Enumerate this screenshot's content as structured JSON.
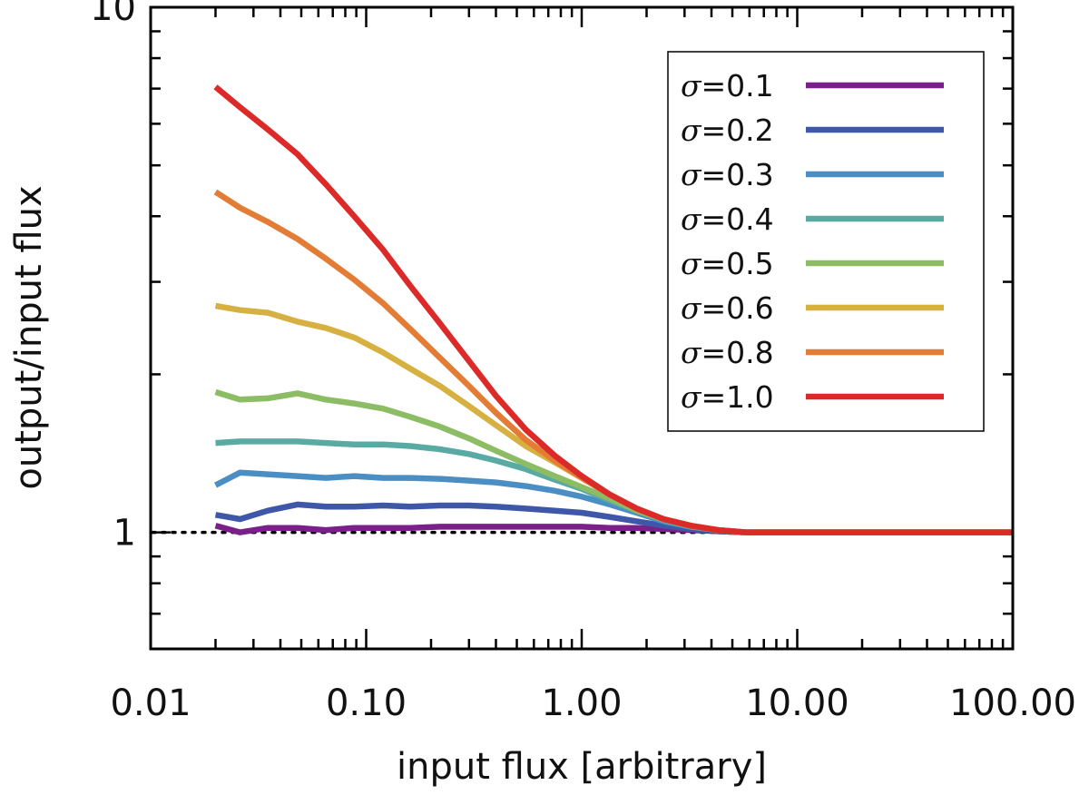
{
  "chart_data": {
    "type": "line",
    "title": "",
    "xlabel": "input flux [arbitrary]",
    "ylabel": "output/input flux",
    "xscale": "log",
    "yscale": "log",
    "xlim": [
      0.01,
      100
    ],
    "ylim": [
      0.6,
      10
    ],
    "grid": false,
    "legend_position": "top-right",
    "x_ticks": [
      {
        "value": 0.01,
        "label": "0.01"
      },
      {
        "value": 0.1,
        "label": "0.10"
      },
      {
        "value": 1,
        "label": "1.00"
      },
      {
        "value": 10,
        "label": "10.00"
      },
      {
        "value": 100,
        "label": "100.00"
      }
    ],
    "y_ticks": [
      {
        "value": 1,
        "label": "1"
      },
      {
        "value": 10,
        "label": "10"
      }
    ],
    "reference_line": {
      "y": 1,
      "style": "dotted",
      "color": "#000000"
    },
    "x": [
      0.02,
      0.026,
      0.035,
      0.048,
      0.065,
      0.088,
      0.12,
      0.16,
      0.22,
      0.3,
      0.4,
      0.55,
      0.75,
      1.0,
      1.35,
      1.8,
      2.4,
      3.2,
      4.3,
      5.8,
      7.8,
      10.5,
      14,
      19,
      26,
      35,
      48,
      65,
      100
    ],
    "series": [
      {
        "name": "σ=0.1",
        "symbol": "σ",
        "value_label": "=0.1",
        "color": "#7b1f8a",
        "values": [
          1.03,
          1.0,
          1.02,
          1.02,
          1.01,
          1.02,
          1.02,
          1.02,
          1.025,
          1.025,
          1.025,
          1.025,
          1.025,
          1.025,
          1.02,
          1.02,
          1.015,
          1.01,
          1.005,
          1.0,
          1.0,
          1.0,
          1.0,
          1.0,
          1.0,
          1.0,
          1.0,
          1.0,
          1.0
        ]
      },
      {
        "name": "σ=0.2",
        "symbol": "σ",
        "value_label": "=0.2",
        "color": "#3e57a8",
        "values": [
          1.08,
          1.06,
          1.1,
          1.13,
          1.12,
          1.12,
          1.125,
          1.12,
          1.125,
          1.125,
          1.12,
          1.11,
          1.1,
          1.09,
          1.07,
          1.05,
          1.03,
          1.015,
          1.005,
          1.0,
          1.0,
          1.0,
          1.0,
          1.0,
          1.0,
          1.0,
          1.0,
          1.0,
          1.0
        ]
      },
      {
        "name": "σ=0.3",
        "symbol": "σ",
        "value_label": "=0.3",
        "color": "#4a8ec4",
        "values": [
          1.23,
          1.3,
          1.29,
          1.28,
          1.27,
          1.28,
          1.27,
          1.27,
          1.265,
          1.255,
          1.245,
          1.225,
          1.2,
          1.17,
          1.13,
          1.09,
          1.05,
          1.025,
          1.01,
          1.0,
          1.0,
          1.0,
          1.0,
          1.0,
          1.0,
          1.0,
          1.0,
          1.0,
          1.0
        ]
      },
      {
        "name": "σ=0.4",
        "symbol": "σ",
        "value_label": "=0.4",
        "color": "#5aaaa4",
        "values": [
          1.48,
          1.49,
          1.49,
          1.49,
          1.48,
          1.47,
          1.47,
          1.46,
          1.44,
          1.41,
          1.37,
          1.32,
          1.26,
          1.21,
          1.15,
          1.1,
          1.055,
          1.025,
          1.01,
          1.0,
          1.0,
          1.0,
          1.0,
          1.0,
          1.0,
          1.0,
          1.0,
          1.0,
          1.0
        ]
      },
      {
        "name": "σ=0.5",
        "symbol": "σ",
        "value_label": "=0.5",
        "color": "#8cbc64",
        "values": [
          1.85,
          1.79,
          1.8,
          1.84,
          1.79,
          1.76,
          1.72,
          1.66,
          1.59,
          1.51,
          1.43,
          1.35,
          1.28,
          1.22,
          1.16,
          1.1,
          1.06,
          1.03,
          1.01,
          1.0,
          1.0,
          1.0,
          1.0,
          1.0,
          1.0,
          1.0,
          1.0,
          1.0,
          1.0
        ]
      },
      {
        "name": "σ=0.6",
        "symbol": "σ",
        "value_label": "=0.6",
        "color": "#d6b040",
        "values": [
          2.7,
          2.65,
          2.62,
          2.52,
          2.45,
          2.35,
          2.2,
          2.05,
          1.9,
          1.74,
          1.6,
          1.46,
          1.36,
          1.27,
          1.18,
          1.11,
          1.06,
          1.03,
          1.01,
          1.0,
          1.0,
          1.0,
          1.0,
          1.0,
          1.0,
          1.0,
          1.0,
          1.0,
          1.0
        ]
      },
      {
        "name": "σ=0.8",
        "symbol": "σ",
        "value_label": "=0.8",
        "color": "#e37c34",
        "values": [
          4.45,
          4.15,
          3.9,
          3.62,
          3.32,
          3.03,
          2.73,
          2.44,
          2.15,
          1.9,
          1.69,
          1.5,
          1.37,
          1.27,
          1.18,
          1.11,
          1.06,
          1.03,
          1.01,
          1.0,
          1.0,
          1.0,
          1.0,
          1.0,
          1.0,
          1.0,
          1.0,
          1.0,
          1.0
        ]
      },
      {
        "name": "σ=1.0",
        "symbol": "σ",
        "value_label": "=1.0",
        "color": "#dc2a28",
        "values": [
          7.05,
          6.45,
          5.85,
          5.25,
          4.6,
          4.0,
          3.45,
          2.95,
          2.5,
          2.12,
          1.82,
          1.57,
          1.4,
          1.28,
          1.18,
          1.11,
          1.06,
          1.03,
          1.01,
          1.0,
          1.0,
          1.0,
          1.0,
          1.0,
          1.0,
          1.0,
          1.0,
          1.0,
          1.0
        ]
      }
    ]
  }
}
